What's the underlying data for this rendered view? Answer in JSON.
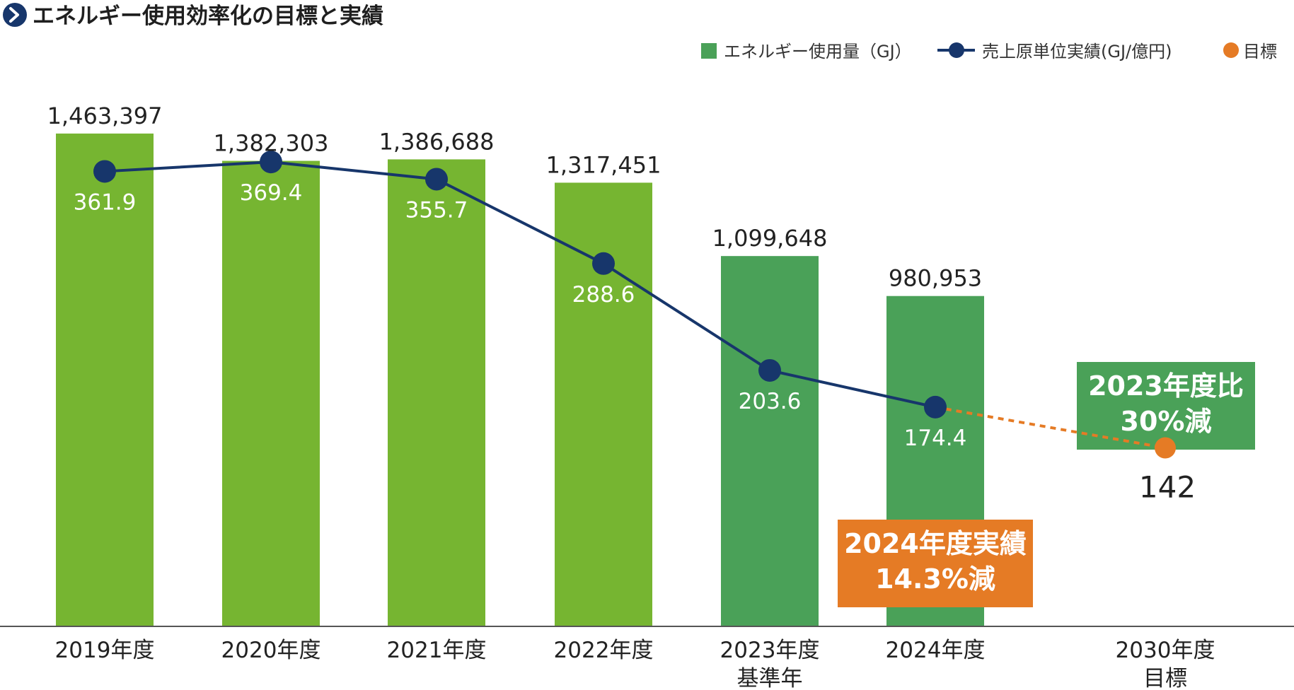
{
  "title": "エネルギー使用効率化の目標と実績",
  "icon": "chevron-right-icon",
  "colors": {
    "bar_default": "#76b531",
    "bar_highlight": "#4aa158",
    "line": "#17366b",
    "target": "#e57b25",
    "callout_green": "#4aa158",
    "callout_orange": "#e57b25",
    "title_icon": "#17366b"
  },
  "legend": [
    {
      "label": "エネルギー使用量（GJ）",
      "marker": "square",
      "color": "#4aa158"
    },
    {
      "label": "売上原単位実績(GJ/億円)",
      "marker": "line-dot",
      "color": "#17366b"
    },
    {
      "label": "目標",
      "marker": "dot",
      "color": "#e57b25"
    }
  ],
  "chart_data": {
    "type": "bar",
    "categories": [
      {
        "label": "2019年度",
        "sub": ""
      },
      {
        "label": "2020年度",
        "sub": ""
      },
      {
        "label": "2021年度",
        "sub": ""
      },
      {
        "label": "2022年度",
        "sub": ""
      },
      {
        "label": "2023年度",
        "sub": "基準年"
      },
      {
        "label": "2024年度",
        "sub": ""
      },
      {
        "label": "2030年度",
        "sub": "目標"
      }
    ],
    "series": [
      {
        "name": "エネルギー使用量（GJ）",
        "type": "bar",
        "values": [
          1463397,
          1382303,
          1386688,
          1317451,
          1099648,
          980953,
          null
        ],
        "labels": [
          "1,463,397",
          "1,382,303",
          "1,386,688",
          "1,317,451",
          "1,099,648",
          "980,953",
          ""
        ],
        "highlight": [
          false,
          false,
          false,
          false,
          true,
          true,
          false
        ]
      },
      {
        "name": "売上原単位実績(GJ/億円)",
        "type": "line",
        "values": [
          361.9,
          369.4,
          355.7,
          288.6,
          203.6,
          174.4,
          null
        ],
        "labels": [
          "361.9",
          "369.4",
          "355.7",
          "288.6",
          "203.6",
          "174.4",
          ""
        ]
      },
      {
        "name": "目標",
        "type": "point",
        "values": [
          null,
          null,
          null,
          null,
          null,
          null,
          142
        ],
        "labels": [
          "",
          "",
          "",
          "",
          "",
          "",
          "142"
        ]
      }
    ],
    "ylim": [
      0,
      1650000
    ],
    "ylim_line": [
      0,
      442
    ],
    "grid": false,
    "legend_position": "top-right",
    "callouts": [
      {
        "lines": [
          "2023年度比",
          "30%減"
        ],
        "color": "#4aa158"
      },
      {
        "lines": [
          "2024年度実績",
          "14.3%減"
        ],
        "color": "#e57b25"
      }
    ]
  }
}
